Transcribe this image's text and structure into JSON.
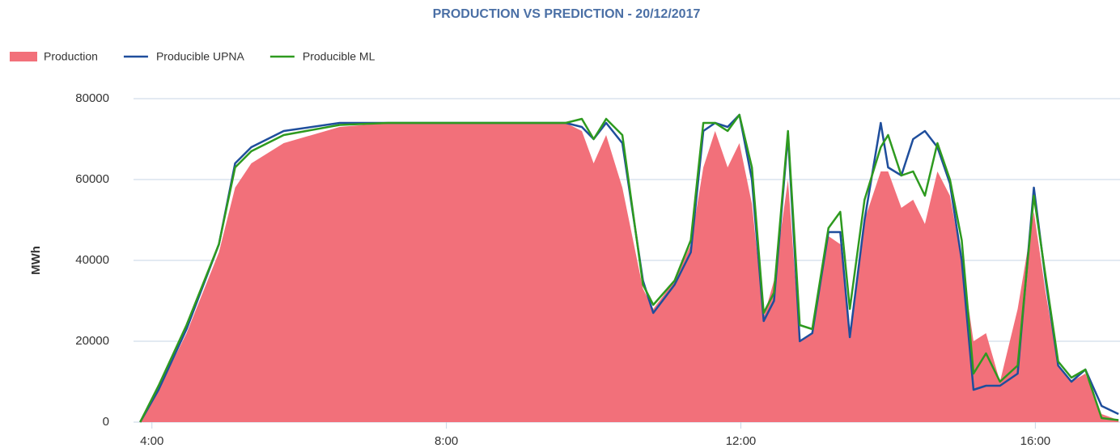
{
  "chart_data": {
    "type": "area_line",
    "title": "PRODUCTION VS PREDICTION - 20/12/2017",
    "y_label": "MWh",
    "legend": "top-left",
    "grid": true,
    "x": [
      3.84,
      4.09,
      4.47,
      4.91,
      5.13,
      5.35,
      5.79,
      6.55,
      7.21,
      9.62,
      9.84,
      10.0,
      10.17,
      10.39,
      10.67,
      10.81,
      11.1,
      11.32,
      11.49,
      11.65,
      11.82,
      11.98,
      12.15,
      12.31,
      12.45,
      12.64,
      12.8,
      12.97,
      13.19,
      13.35,
      13.48,
      13.68,
      13.9,
      14.0,
      14.18,
      14.34,
      14.5,
      14.67,
      14.84,
      15.0,
      15.16,
      15.33,
      15.52,
      15.76,
      15.98,
      16.14,
      16.31,
      16.49,
      16.68,
      16.9,
      17.13
    ],
    "xlim": [
      3.75,
      17.15
    ],
    "xticks": [
      {
        "value": 4,
        "label": "4:00"
      },
      {
        "value": 8,
        "label": "8:00"
      },
      {
        "value": 12,
        "label": "12:00"
      },
      {
        "value": 16,
        "label": "16:00"
      }
    ],
    "ylim": [
      0,
      80000
    ],
    "yticks": [
      0,
      20000,
      40000,
      60000,
      80000
    ],
    "series": [
      {
        "name": "Production",
        "kind": "area",
        "color": "#f2707a",
        "values": [
          0,
          8000,
          22000,
          42000,
          58000,
          64000,
          69000,
          73000,
          74000,
          74000,
          72000,
          64000,
          71000,
          58000,
          33000,
          28000,
          35000,
          44000,
          63000,
          72000,
          63000,
          69000,
          54000,
          26000,
          35000,
          60000,
          20000,
          22000,
          46000,
          44000,
          22000,
          50000,
          62000,
          62000,
          53000,
          55000,
          49000,
          62000,
          56000,
          40000,
          20000,
          22000,
          10000,
          28000,
          52000,
          32000,
          14000,
          10000,
          12000,
          2000,
          500
        ]
      },
      {
        "name": "Producible UPNA",
        "kind": "line",
        "color": "#1f4e9c",
        "values": [
          0,
          8000,
          23000,
          44000,
          64000,
          68000,
          72000,
          74000,
          74000,
          74000,
          73000,
          70000,
          74000,
          69000,
          35000,
          27000,
          34000,
          42000,
          72000,
          74000,
          73000,
          76000,
          60000,
          25000,
          30000,
          71000,
          20000,
          22000,
          47000,
          47000,
          21000,
          50000,
          74000,
          63000,
          61000,
          70000,
          72000,
          68000,
          59000,
          40000,
          8000,
          9000,
          9000,
          12000,
          58000,
          35000,
          14000,
          10000,
          13000,
          4000,
          2000
        ]
      },
      {
        "name": "Producible ML",
        "kind": "line",
        "color": "#2e9a1f",
        "values": [
          0,
          9000,
          24000,
          44000,
          63000,
          67000,
          71000,
          73500,
          74000,
          74000,
          75000,
          70000,
          75000,
          71000,
          34000,
          29000,
          35000,
          45000,
          74000,
          74000,
          72000,
          76000,
          63000,
          27000,
          32000,
          72000,
          24000,
          23000,
          48000,
          52000,
          28000,
          55000,
          68000,
          71000,
          61000,
          62000,
          56000,
          69000,
          60000,
          45000,
          12000,
          17000,
          10000,
          14000,
          56000,
          36000,
          15000,
          11000,
          13000,
          1000,
          500
        ]
      }
    ]
  }
}
